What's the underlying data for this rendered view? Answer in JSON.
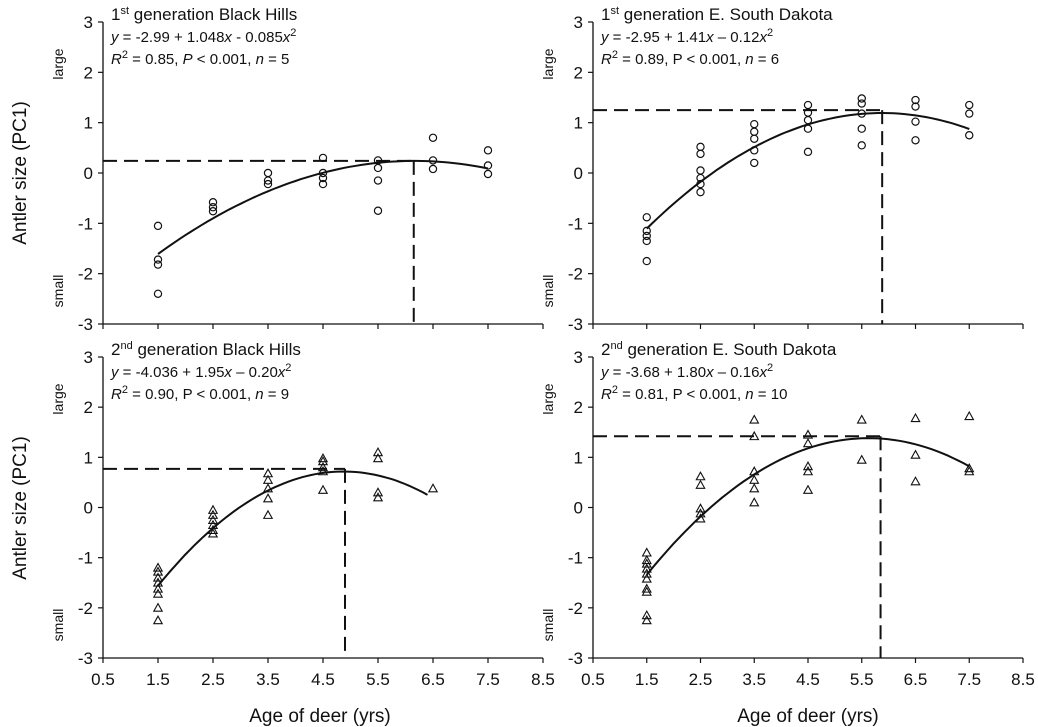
{
  "shared": {
    "ylabel": "Antler size (PC1)",
    "xlabel": "Age of deer (yrs)",
    "y_large_word": "large",
    "y_small_word": "small"
  },
  "chart_data": [
    {
      "type": "scatter",
      "title_parts": [
        "1",
        "st",
        " generation Black Hills"
      ],
      "equation_parts": [
        "y",
        " = -2.99 + 1.048",
        "x",
        " - 0.085",
        "x",
        "2"
      ],
      "stats_parts": [
        "R",
        "2",
        " = 0.85, ",
        "P",
        " < 0.001, ",
        "n",
        " = 5"
      ],
      "marker": "circle",
      "points": [
        [
          1.5,
          -1.05
        ],
        [
          1.5,
          -1.72
        ],
        [
          1.5,
          -1.82
        ],
        [
          1.5,
          -2.4
        ],
        [
          2.5,
          -0.58
        ],
        [
          2.5,
          -0.68
        ],
        [
          2.5,
          -0.76
        ],
        [
          3.5,
          0.0
        ],
        [
          3.5,
          -0.15
        ],
        [
          3.5,
          -0.22
        ],
        [
          4.5,
          0.3
        ],
        [
          4.5,
          0.0
        ],
        [
          4.5,
          -0.1
        ],
        [
          4.5,
          -0.22
        ],
        [
          5.5,
          0.25
        ],
        [
          5.5,
          0.1
        ],
        [
          5.5,
          -0.15
        ],
        [
          5.5,
          -0.75
        ],
        [
          6.5,
          0.7
        ],
        [
          6.5,
          0.25
        ],
        [
          6.5,
          0.08
        ],
        [
          7.5,
          0.45
        ],
        [
          7.5,
          0.15
        ],
        [
          7.5,
          -0.02
        ]
      ],
      "curve": {
        "a": -2.99,
        "b": 1.048,
        "c": -0.085,
        "x_start": 1.5,
        "x_end": 7.5
      },
      "peak": {
        "x": 6.15,
        "y": 0.24
      },
      "xlim": [
        0.5,
        8.5
      ],
      "ylim": [
        -3,
        3
      ],
      "xticks": [
        "0.5",
        "1.5",
        "2.5",
        "3.5",
        "4.5",
        "5.5",
        "6.5",
        "7.5",
        "8.5"
      ],
      "yticks": [
        "-3",
        "-2",
        "-1",
        "0",
        "1",
        "2",
        "3"
      ],
      "show_xlabels": false
    },
    {
      "type": "scatter",
      "title_parts": [
        "1",
        "st",
        " generation E. South Dakota"
      ],
      "equation_parts": [
        "y",
        " = -2.95 + 1.41",
        "x",
        " – 0.12",
        "x",
        "2"
      ],
      "stats_parts": [
        "R",
        "2",
        " = 0.89, P < 0.001, ",
        "n",
        " = 6",
        "",
        ""
      ],
      "marker": "circle",
      "points": [
        [
          1.5,
          -0.88
        ],
        [
          1.5,
          -1.15
        ],
        [
          1.5,
          -1.25
        ],
        [
          1.5,
          -1.35
        ],
        [
          1.5,
          -1.75
        ],
        [
          2.5,
          0.52
        ],
        [
          2.5,
          0.38
        ],
        [
          2.5,
          0.05
        ],
        [
          2.5,
          -0.1
        ],
        [
          2.5,
          -0.22
        ],
        [
          2.5,
          -0.38
        ],
        [
          3.5,
          0.97
        ],
        [
          3.5,
          0.82
        ],
        [
          3.5,
          0.68
        ],
        [
          3.5,
          0.45
        ],
        [
          3.5,
          0.2
        ],
        [
          4.5,
          1.35
        ],
        [
          4.5,
          1.2
        ],
        [
          4.5,
          1.05
        ],
        [
          4.5,
          0.88
        ],
        [
          4.5,
          0.42
        ],
        [
          5.5,
          1.48
        ],
        [
          5.5,
          1.38
        ],
        [
          5.5,
          1.18
        ],
        [
          5.5,
          0.88
        ],
        [
          5.5,
          0.55
        ],
        [
          6.5,
          1.45
        ],
        [
          6.5,
          1.32
        ],
        [
          6.5,
          1.02
        ],
        [
          6.5,
          0.65
        ],
        [
          7.5,
          1.35
        ],
        [
          7.5,
          1.18
        ],
        [
          7.5,
          0.75
        ]
      ],
      "curve": {
        "a": -2.95,
        "b": 1.41,
        "c": -0.12,
        "x_start": 1.5,
        "x_end": 7.5
      },
      "peak": {
        "x": 5.88,
        "y": 1.25
      },
      "xlim": [
        0.5,
        8.5
      ],
      "ylim": [
        -3,
        3
      ],
      "xticks": [
        "0.5",
        "1.5",
        "2.5",
        "3.5",
        "4.5",
        "5.5",
        "6.5",
        "7.5",
        "8.5"
      ],
      "yticks": [
        "-3",
        "-2",
        "-1",
        "0",
        "1",
        "2",
        "3"
      ],
      "show_xlabels": false
    },
    {
      "type": "scatter",
      "title_parts": [
        "2",
        "nd",
        " generation Black Hills"
      ],
      "equation_parts": [
        "y",
        " = -4.036 + 1.95",
        "x",
        " – 0.20",
        "x",
        "2"
      ],
      "stats_parts": [
        "R",
        "2",
        " = 0.90, P < 0.001, ",
        "n",
        " = 9",
        "",
        ""
      ],
      "marker": "triangle",
      "points": [
        [
          1.5,
          -1.2
        ],
        [
          1.5,
          -1.28
        ],
        [
          1.5,
          -1.4
        ],
        [
          1.5,
          -1.5
        ],
        [
          1.5,
          -1.62
        ],
        [
          1.5,
          -1.72
        ],
        [
          1.5,
          -2.0
        ],
        [
          1.5,
          -2.25
        ],
        [
          2.5,
          -0.05
        ],
        [
          2.5,
          -0.15
        ],
        [
          2.5,
          -0.25
        ],
        [
          2.5,
          -0.35
        ],
        [
          2.5,
          -0.45
        ],
        [
          2.5,
          -0.52
        ],
        [
          3.5,
          0.68
        ],
        [
          3.5,
          0.55
        ],
        [
          3.5,
          0.38
        ],
        [
          3.5,
          0.18
        ],
        [
          3.5,
          -0.15
        ],
        [
          4.5,
          0.98
        ],
        [
          4.5,
          0.92
        ],
        [
          4.5,
          0.8
        ],
        [
          4.5,
          0.72
        ],
        [
          4.5,
          0.35
        ],
        [
          5.5,
          1.1
        ],
        [
          5.5,
          0.98
        ],
        [
          5.5,
          0.3
        ],
        [
          5.5,
          0.2
        ],
        [
          6.5,
          0.38
        ]
      ],
      "curve": {
        "a": -4.036,
        "b": 1.95,
        "c": -0.2,
        "x_start": 1.5,
        "x_end": 6.4
      },
      "peak": {
        "x": 4.9,
        "y": 0.77
      },
      "xlim": [
        0.5,
        8.5
      ],
      "ylim": [
        -3,
        3
      ],
      "xticks": [
        "0.5",
        "1.5",
        "2.5",
        "3.5",
        "4.5",
        "5.5",
        "6.5",
        "7.5",
        "8.5"
      ],
      "yticks": [
        "-3",
        "-2",
        "-1",
        "0",
        "1",
        "2",
        "3"
      ],
      "show_xlabels": true
    },
    {
      "type": "scatter",
      "title_parts": [
        "2",
        "nd",
        " generation E. South Dakota"
      ],
      "equation_parts": [
        "y",
        " = -3.68 + 1.80",
        "x",
        " – 0.16",
        "x",
        "2"
      ],
      "stats_parts": [
        "R",
        "2",
        " = 0.81, P < 0.001, ",
        "n",
        " = 10",
        "",
        ""
      ],
      "marker": "triangle",
      "points": [
        [
          1.5,
          -0.9
        ],
        [
          1.5,
          -1.05
        ],
        [
          1.5,
          -1.12
        ],
        [
          1.5,
          -1.22
        ],
        [
          1.5,
          -1.32
        ],
        [
          1.5,
          -1.42
        ],
        [
          1.5,
          -1.62
        ],
        [
          1.5,
          -1.68
        ],
        [
          1.5,
          -2.15
        ],
        [
          1.5,
          -2.25
        ],
        [
          2.5,
          0.62
        ],
        [
          2.5,
          0.45
        ],
        [
          2.5,
          -0.02
        ],
        [
          2.5,
          -0.12
        ],
        [
          2.5,
          -0.22
        ],
        [
          3.5,
          1.75
        ],
        [
          3.5,
          1.42
        ],
        [
          3.5,
          0.72
        ],
        [
          3.5,
          0.55
        ],
        [
          3.5,
          0.38
        ],
        [
          3.5,
          0.1
        ],
        [
          4.5,
          1.45
        ],
        [
          4.5,
          1.28
        ],
        [
          4.5,
          0.82
        ],
        [
          4.5,
          0.72
        ],
        [
          4.5,
          0.35
        ],
        [
          5.5,
          1.75
        ],
        [
          5.5,
          0.95
        ],
        [
          6.5,
          1.78
        ],
        [
          6.5,
          1.05
        ],
        [
          6.5,
          0.52
        ],
        [
          7.5,
          1.82
        ],
        [
          7.5,
          0.78
        ],
        [
          7.5,
          0.72
        ]
      ],
      "curve": {
        "a": -3.68,
        "b": 1.8,
        "c": -0.16,
        "x_start": 1.5,
        "x_end": 7.5
      },
      "peak": {
        "x": 5.85,
        "y": 1.42
      },
      "xlim": [
        0.5,
        8.5
      ],
      "ylim": [
        -3,
        3
      ],
      "xticks": [
        "0.5",
        "1.5",
        "2.5",
        "3.5",
        "4.5",
        "5.5",
        "6.5",
        "7.5",
        "8.5"
      ],
      "yticks": [
        "-3",
        "-2",
        "-1",
        "0",
        "1",
        "2",
        "3"
      ],
      "show_xlabels": true
    }
  ]
}
